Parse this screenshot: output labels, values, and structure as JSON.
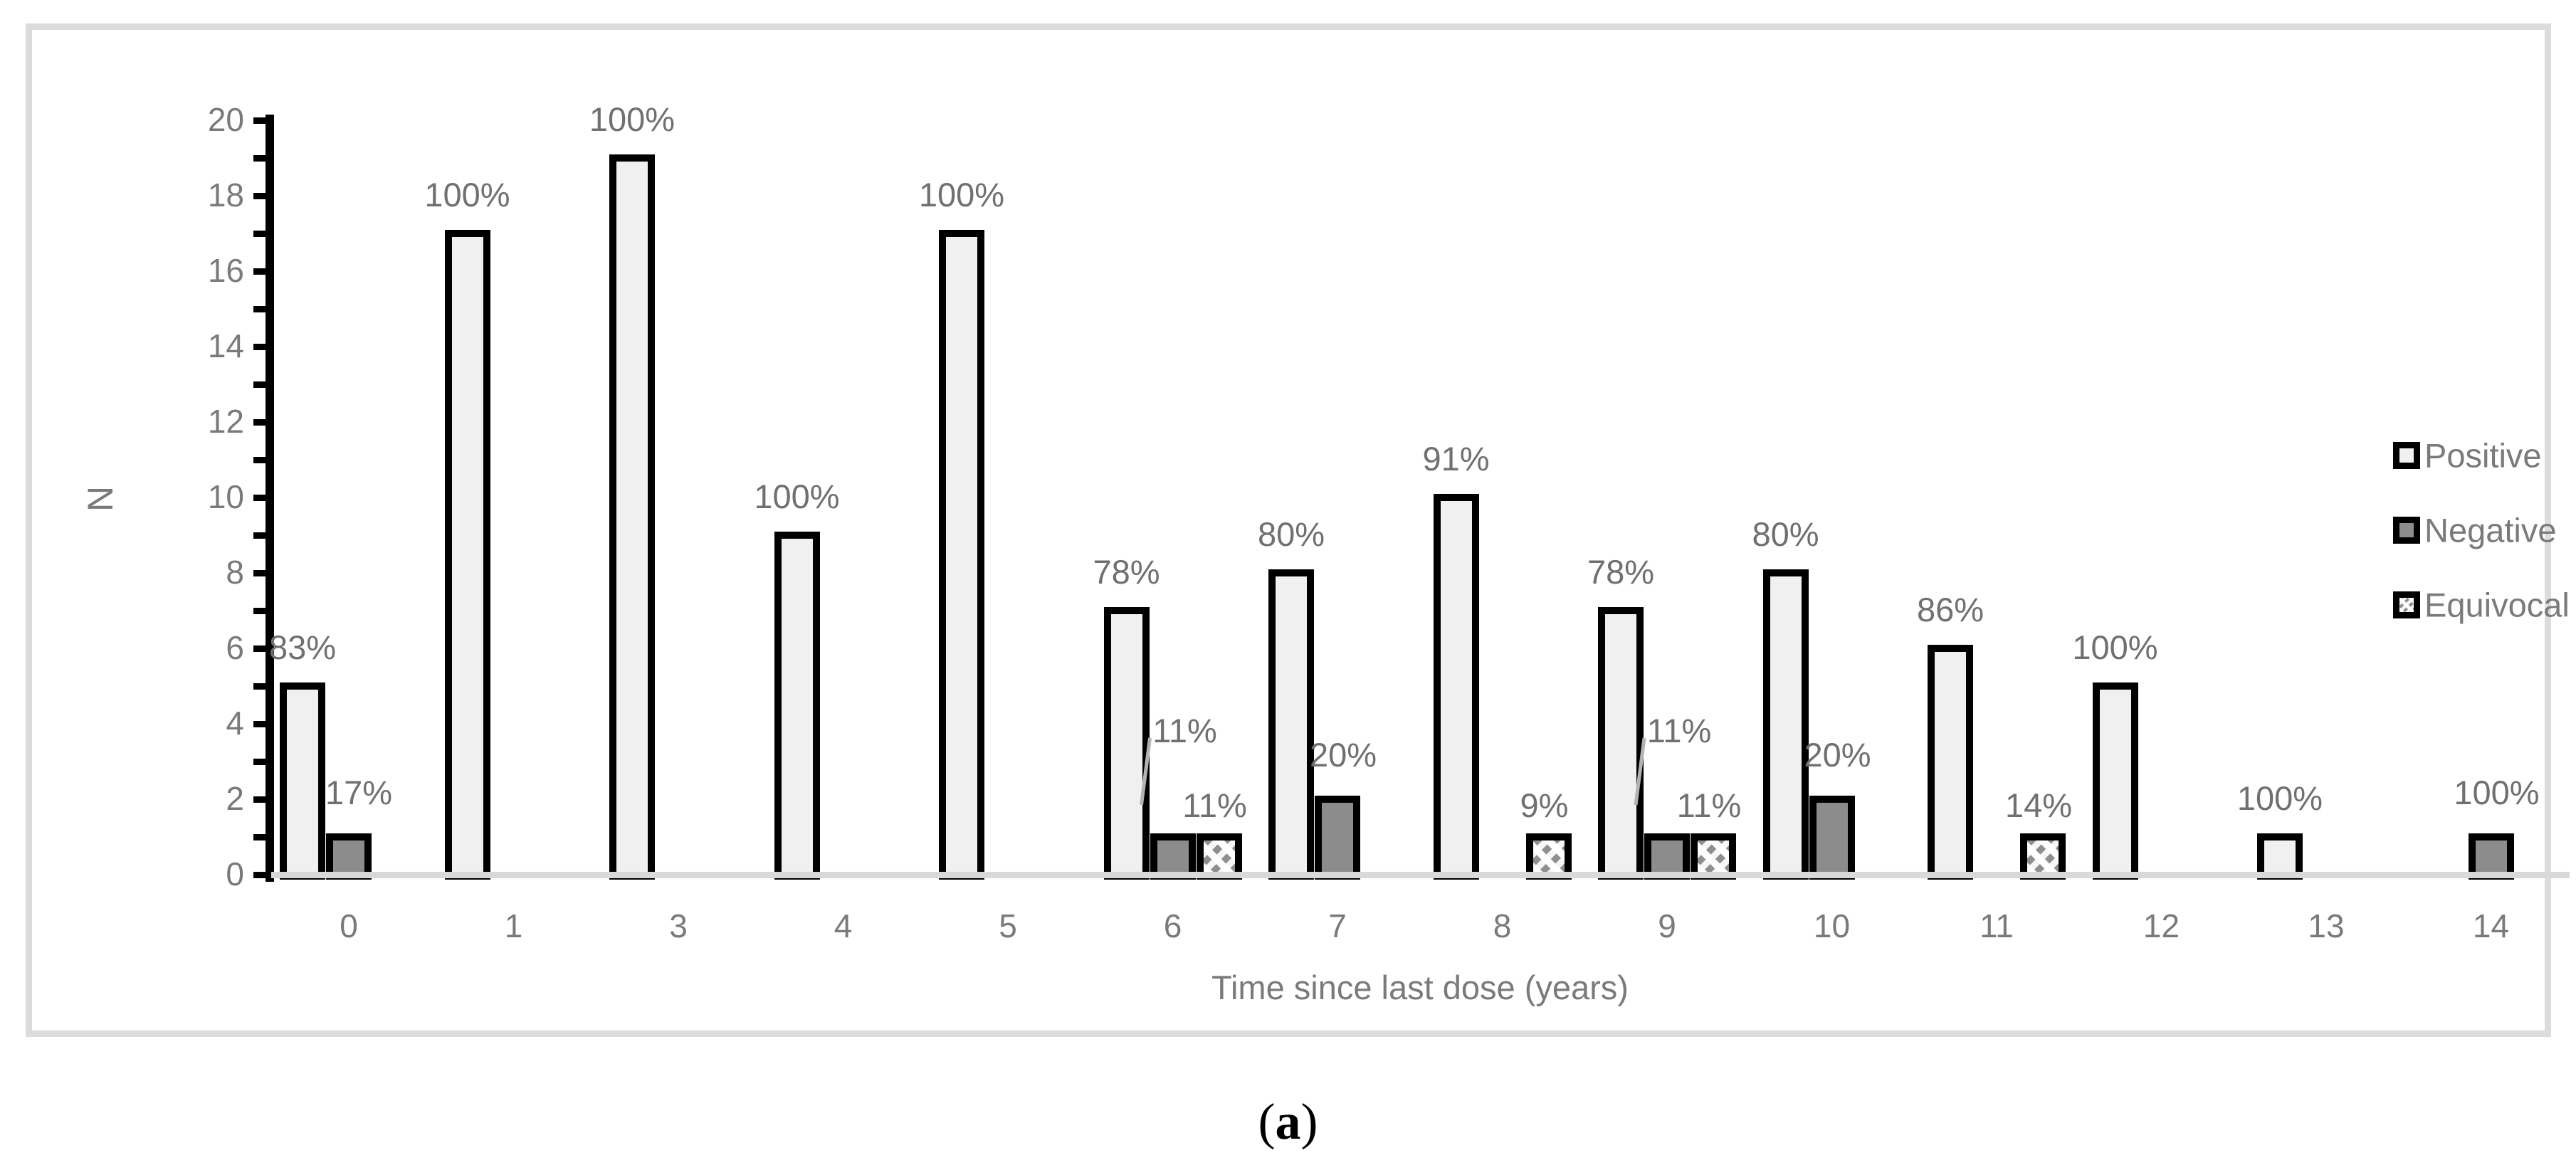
{
  "figure": {
    "caption": {
      "open": "(",
      "letter": "a",
      "close": ")"
    }
  },
  "colors": {
    "positive_fill": "#f0f0f0",
    "negative_fill": "#8c8c8c",
    "equivocal_hatch": "#8f8f8f",
    "bar_border": "#000000",
    "axis_line": "#000000",
    "baseline": "#d9d9d9",
    "frame": "#dcdcdc",
    "axis_text": "#7a7a7a",
    "label_text": "#707070",
    "leader_line": "#b3b3b3"
  },
  "chart_data": {
    "type": "bar",
    "title": "",
    "xlabel": "Time since last dose (years)",
    "ylabel": "N",
    "ylim": [
      0,
      20
    ],
    "ytick_step": 2,
    "minor_tick_step": 1,
    "grid": false,
    "legend_position": "right",
    "yticks": [
      "0",
      "2",
      "4",
      "6",
      "8",
      "10",
      "12",
      "14",
      "16",
      "18",
      "20"
    ],
    "categories": [
      "0",
      "1",
      "3",
      "4",
      "5",
      "6",
      "7",
      "8",
      "9",
      "10",
      "11",
      "12",
      "13",
      "14"
    ],
    "series": [
      {
        "name": "Positive",
        "values": [
          5,
          17,
          19,
          9,
          17,
          7,
          8,
          10,
          7,
          8,
          6,
          5,
          1,
          0
        ],
        "labels": [
          "83%",
          "100%",
          "100%",
          "100%",
          "100%",
          "78%",
          "80%",
          "91%",
          "78%",
          "80%",
          "86%",
          "100%",
          "100%",
          ""
        ]
      },
      {
        "name": "Negative",
        "values": [
          1,
          0,
          0,
          0,
          0,
          1,
          2,
          0,
          1,
          2,
          0,
          0,
          0,
          1
        ],
        "labels": [
          "17%",
          "",
          "",
          "",
          "",
          "11%",
          "20%",
          "",
          "11%",
          "20%",
          "",
          "",
          "",
          "100%"
        ]
      },
      {
        "name": "Equivocal",
        "values": [
          0,
          0,
          0,
          0,
          0,
          1,
          0,
          1,
          1,
          0,
          1,
          0,
          0,
          0
        ],
        "labels": [
          "",
          "",
          "",
          "",
          "",
          "11%",
          "",
          "9%",
          "11%",
          "",
          "14%",
          "",
          "",
          ""
        ]
      }
    ],
    "legend": [
      "Positive",
      "Negative",
      "Equivocal"
    ],
    "callout_labels": [
      {
        "series": "Negative",
        "category": "6",
        "label": "11%"
      },
      {
        "series": "Negative",
        "category": "9",
        "label": "11%"
      }
    ]
  }
}
